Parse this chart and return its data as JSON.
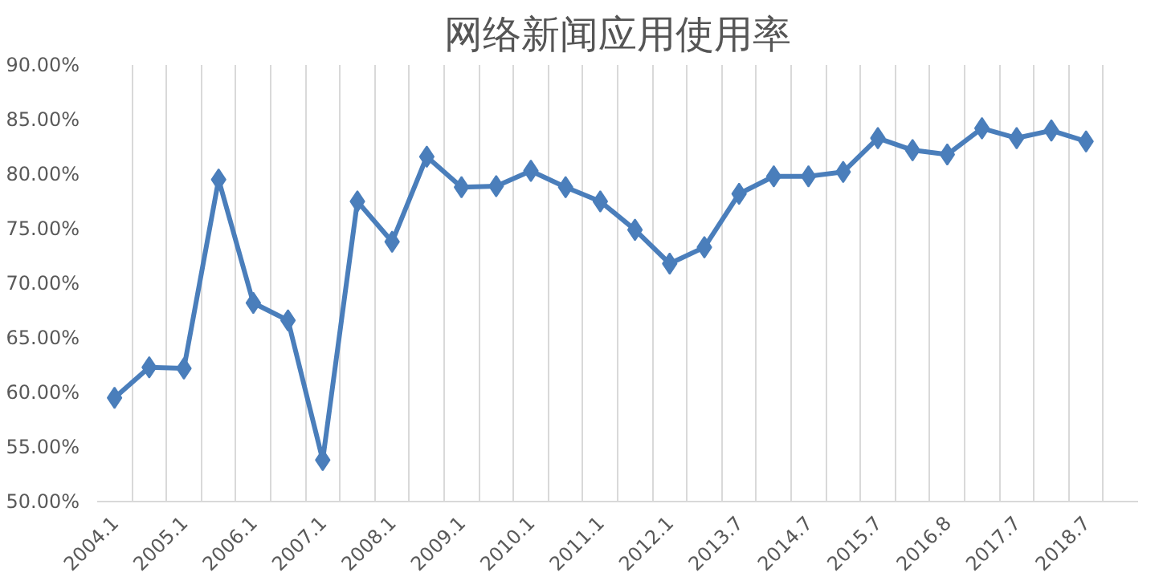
{
  "chart_data": {
    "type": "line",
    "title": "网络新闻应用使用率",
    "categories": [
      "2004.1",
      null,
      "2005.1",
      null,
      "2006.1",
      null,
      "2007.1",
      null,
      "2008.1",
      null,
      "2009.1",
      null,
      "2010.1",
      null,
      "2011.1",
      null,
      "2012.1",
      null,
      "2013.7",
      null,
      "2014.7",
      null,
      "2015.7",
      null,
      "2016.8",
      null,
      "2017.7",
      null,
      "2018.7",
      null
    ],
    "series": [
      {
        "color": "#4a7ebb",
        "values": [
          59.5,
          62.3,
          62.2,
          79.5,
          68.2,
          66.6,
          53.8,
          77.5,
          73.8,
          81.6,
          78.8,
          78.9,
          80.3,
          78.8,
          77.5,
          74.9,
          71.8,
          73.3,
          78.2,
          79.8,
          79.8,
          80.2,
          83.3,
          82.2,
          81.8,
          84.2,
          83.3,
          84.0,
          83.0,
          null
        ]
      }
    ],
    "ylim": [
      50,
      90
    ],
    "yticks": [
      {
        "value": 50,
        "label": "50.00%"
      },
      {
        "value": 55,
        "label": "55.00%"
      },
      {
        "value": 60,
        "label": "60.00%"
      },
      {
        "value": 65,
        "label": "65.00%"
      },
      {
        "value": 70,
        "label": "70.00%"
      },
      {
        "value": 75,
        "label": "75.00%"
      },
      {
        "value": 80,
        "label": "80.00%"
      },
      {
        "value": 85,
        "label": "85.00%"
      },
      {
        "value": 90,
        "label": "90.00%"
      }
    ],
    "grid": "x",
    "marker": "diamond",
    "line_style": "solid"
  }
}
